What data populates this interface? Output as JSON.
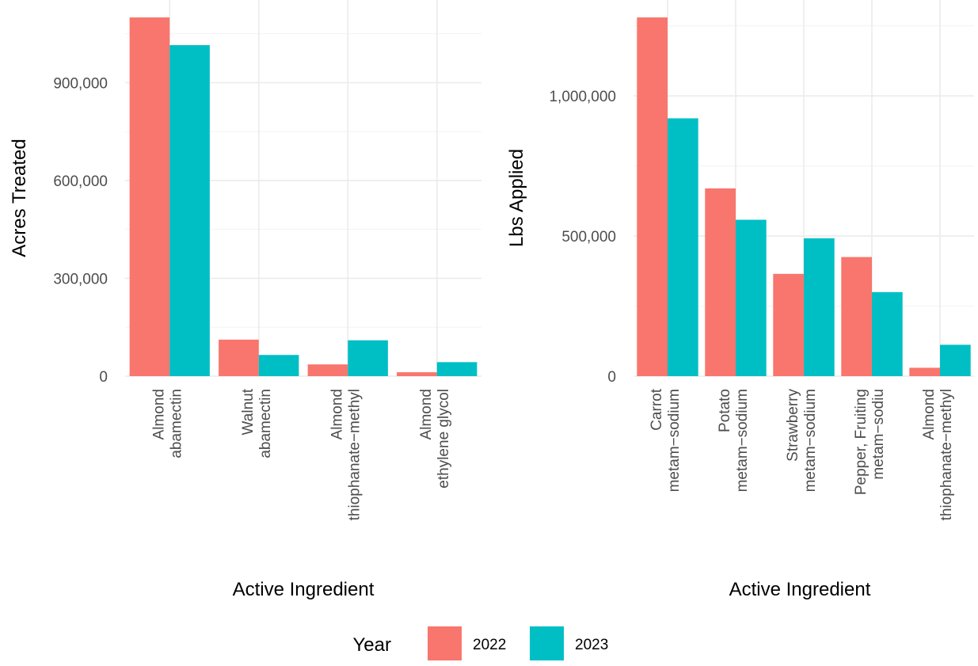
{
  "chart_data": [
    {
      "type": "bar",
      "title": "",
      "xlabel": "Active Ingredient",
      "ylabel": "Acres Treated",
      "categories": [
        [
          "Almond",
          "abamectin"
        ],
        [
          "Walnut",
          "abamectin"
        ],
        [
          "Almond",
          "thiophanate−methyl"
        ],
        [
          "Almond",
          "ethylene glycol"
        ]
      ],
      "series": [
        {
          "name": "2022",
          "values": [
            1100000,
            112000,
            36000,
            12000
          ]
        },
        {
          "name": "2023",
          "values": [
            1015000,
            65000,
            110000,
            43000
          ]
        }
      ],
      "ylim": [
        0,
        1100000
      ],
      "yticks": [
        0,
        300000,
        600000,
        900000
      ],
      "ytick_labels": [
        "0",
        "300,000",
        "600,000",
        "900,000"
      ],
      "grid": true
    },
    {
      "type": "bar",
      "title": "",
      "xlabel": "Active Ingredient",
      "ylabel": "Lbs Applied",
      "categories": [
        [
          "Carrot",
          "metam−sodium"
        ],
        [
          "Potato",
          "metam−sodium"
        ],
        [
          "Strawberry",
          "metam−sodium"
        ],
        [
          "Pepper, Fruiting",
          "metam−sodiu"
        ],
        [
          "Almond",
          "thiophanate−methyl"
        ]
      ],
      "series": [
        {
          "name": "2022",
          "values": [
            1280000,
            670000,
            365000,
            425000,
            30000
          ]
        },
        {
          "name": "2023",
          "values": [
            920000,
            558000,
            492000,
            300000,
            112000
          ]
        }
      ],
      "ylim": [
        0,
        1280000
      ],
      "yticks": [
        0,
        500000,
        1000000
      ],
      "ytick_labels": [
        "0",
        "500,000",
        "1,000,000"
      ],
      "grid": true
    }
  ],
  "legend": {
    "title": "Year",
    "position": "bottom",
    "items": [
      {
        "label": "2022",
        "color": "#F8766D"
      },
      {
        "label": "2023",
        "color": "#00BFC4"
      }
    ]
  }
}
